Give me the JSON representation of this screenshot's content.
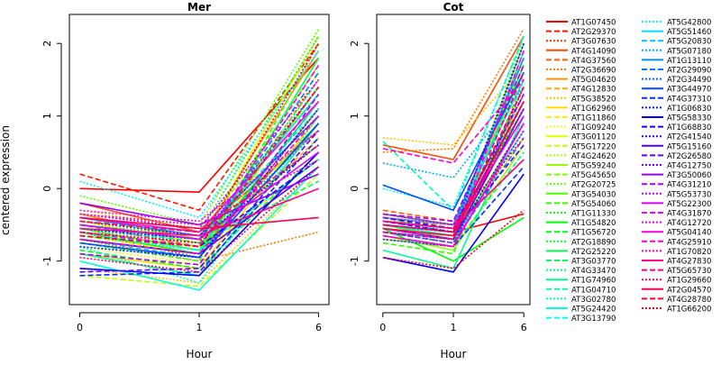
{
  "chart_data": {
    "type": "line",
    "ylabel": "centered expression",
    "x": [
      0,
      1,
      6
    ],
    "x_tick_labels": [
      "0",
      "1",
      "6"
    ],
    "xlabel": "Hour",
    "y_ticks": [
      -1,
      0,
      1,
      2
    ],
    "y_tick_labels": [
      "-1",
      "0",
      "1",
      "2"
    ],
    "legend": {
      "placement": "right",
      "columns": 2
    },
    "palette_note": "rainbow",
    "genes": [
      "AT1G07450",
      "AT2G29370",
      "AT3G07630",
      "AT4G14090",
      "AT4G37560",
      "AT2G36690",
      "AT5G04620",
      "AT4G12830",
      "AT5G38520",
      "AT1G62960",
      "AT1G11860",
      "AT1G09240",
      "AT3G01120",
      "AT5G17220",
      "AT4G24620",
      "AT5G59240",
      "AT5G45650",
      "AT2G20725",
      "AT3G54030",
      "AT5G54060",
      "AT1G11330",
      "AT1G54820",
      "AT1G56720",
      "AT2G18890",
      "AT2G25220",
      "AT3G03770",
      "AT4G33470",
      "AT1G74960",
      "AT1G04710",
      "AT3G02780",
      "AT5G24420",
      "AT3G13790",
      "AT5G42800",
      "AT5G51460",
      "AT5G20830",
      "AT5G07180",
      "AT1G13110",
      "AT2G29090",
      "AT2G34490",
      "AT3G44970",
      "AT4G37310",
      "AT1G06830",
      "AT5G58330",
      "AT1G68830",
      "AT2G41540",
      "AT5G15160",
      "AT2G26580",
      "AT4G12750",
      "AT3G50060",
      "AT4G31210",
      "AT5G53730",
      "AT5G22300",
      "AT4G31870",
      "AT4G12720",
      "AT5G04140",
      "AT4G25910",
      "AT1G70820",
      "AT4G27830",
      "AT5G65730",
      "AT1G29660",
      "AT2G04570",
      "AT4G28780",
      "AT1G66200"
    ],
    "line_styles": [
      "solid",
      "dashed",
      "dotted"
    ],
    "panels": [
      {
        "title": "Mer",
        "ylim": [
          -1.6,
          2.4
        ],
        "series": [
          [
            0.0,
            -0.05,
            1.8
          ],
          [
            0.2,
            -0.3,
            2.0
          ],
          [
            -0.6,
            -0.95,
            1.1
          ],
          [
            -0.2,
            -0.6,
            0.8
          ],
          [
            -0.5,
            -0.8,
            1.5
          ],
          [
            -0.7,
            -1.0,
            -0.6
          ],
          [
            -0.35,
            -0.7,
            1.9
          ],
          [
            -0.55,
            -0.85,
            0.7
          ],
          [
            -1.1,
            -1.3,
            0.3
          ],
          [
            -0.9,
            -1.1,
            1.0
          ],
          [
            -0.65,
            -0.9,
            0.4
          ],
          [
            -0.8,
            -1.05,
            1.6
          ],
          [
            -0.45,
            -0.75,
            2.1
          ],
          [
            -1.2,
            -1.35,
            0.2
          ],
          [
            -0.3,
            -0.55,
            1.3
          ],
          [
            -0.6,
            -0.8,
            0.9
          ],
          [
            -0.4,
            -0.7,
            1.7
          ],
          [
            -0.1,
            -0.5,
            2.2
          ],
          [
            -0.55,
            -0.85,
            1.4
          ],
          [
            -0.75,
            -1.0,
            2.0
          ],
          [
            -0.5,
            -0.65,
            0.6
          ],
          [
            -0.6,
            -0.9,
            1.2
          ],
          [
            -0.85,
            -1.1,
            0.5
          ],
          [
            -0.45,
            -0.6,
            2.1
          ],
          [
            -0.7,
            -0.9,
            1.8
          ],
          [
            -0.5,
            -0.75,
            0.1
          ],
          [
            -0.65,
            -0.85,
            1.5
          ],
          [
            -0.9,
            -1.2,
            0.9
          ],
          [
            -0.55,
            -0.7,
            1.1
          ],
          [
            -0.8,
            -1.3,
            1.0
          ],
          [
            -1.0,
            -1.4,
            0.3
          ],
          [
            -0.6,
            -0.85,
            0.4
          ],
          [
            0.1,
            -0.4,
            1.9
          ],
          [
            -0.5,
            -0.7,
            1.3
          ],
          [
            -0.7,
            -0.95,
            1.2
          ],
          [
            -0.55,
            -0.75,
            0.8
          ],
          [
            -0.4,
            -0.65,
            1.0
          ],
          [
            -0.65,
            -0.8,
            1.6
          ],
          [
            -0.5,
            -0.7,
            1.4
          ],
          [
            -0.75,
            -0.95,
            0.9
          ],
          [
            -1.2,
            -1.15,
            0.7
          ],
          [
            -0.8,
            -0.95,
            1.1
          ],
          [
            -1.1,
            -1.2,
            0.5
          ],
          [
            -0.6,
            -0.8,
            0.4
          ],
          [
            -0.55,
            -0.7,
            0.6
          ],
          [
            -0.7,
            -0.9,
            0.3
          ],
          [
            -1.15,
            -1.1,
            0.8
          ],
          [
            -0.45,
            -0.65,
            1.0
          ],
          [
            -0.2,
            -0.5,
            0.2
          ],
          [
            -0.9,
            -1.05,
            1.3
          ],
          [
            -0.35,
            -0.55,
            1.5
          ],
          [
            -0.5,
            -0.7,
            0.5
          ],
          [
            -0.6,
            -0.8,
            1.7
          ],
          [
            -0.3,
            -0.45,
            0.8
          ],
          [
            -0.4,
            -0.6,
            1.2
          ],
          [
            -0.7,
            -0.9,
            1.0
          ],
          [
            -0.35,
            -0.5,
            0.4
          ],
          [
            -0.55,
            -0.65,
            0.0
          ],
          [
            -0.45,
            -0.6,
            0.6
          ],
          [
            -0.95,
            -1.15,
            0.3
          ],
          [
            -0.4,
            -0.55,
            -0.4
          ],
          [
            -0.65,
            -0.8,
            1.4
          ],
          [
            -0.6,
            -0.75,
            2.0
          ]
        ]
      },
      {
        "title": "Cot",
        "ylim": [
          -1.6,
          2.4
        ],
        "series": [
          [
            -0.5,
            -0.6,
            -0.35
          ],
          [
            -0.4,
            -0.5,
            1.2
          ],
          [
            -0.6,
            -0.7,
            2.0
          ],
          [
            0.6,
            0.4,
            2.1
          ],
          [
            -0.3,
            -0.45,
            1.5
          ],
          [
            0.5,
            0.55,
            2.2
          ],
          [
            -0.55,
            -0.65,
            1.8
          ],
          [
            -0.45,
            -0.5,
            1.0
          ],
          [
            0.7,
            0.6,
            1.7
          ],
          [
            -0.6,
            -0.7,
            1.3
          ],
          [
            -0.5,
            -0.65,
            0.7
          ],
          [
            -0.4,
            -0.55,
            2.0
          ],
          [
            -0.7,
            -0.8,
            1.9
          ],
          [
            -0.35,
            -0.5,
            1.6
          ],
          [
            -0.55,
            -0.7,
            1.4
          ],
          [
            -0.65,
            -0.85,
            0.6
          ],
          [
            -0.45,
            -0.6,
            1.1
          ],
          [
            -0.6,
            -0.75,
            2.1
          ],
          [
            -0.5,
            -0.7,
            0.9
          ],
          [
            -0.75,
            -0.9,
            1.5
          ],
          [
            -0.45,
            -0.55,
            1.8
          ],
          [
            -0.55,
            -1.0,
            -0.4
          ],
          [
            -0.6,
            -0.75,
            1.2
          ],
          [
            -0.4,
            -0.6,
            2.0
          ],
          [
            -0.5,
            -0.65,
            1.7
          ],
          [
            -0.7,
            -0.8,
            0.5
          ],
          [
            -0.55,
            -0.7,
            1.3
          ],
          [
            -0.85,
            -1.1,
            1.0
          ],
          [
            0.65,
            -0.3,
            2.1
          ],
          [
            -0.45,
            -0.55,
            1.6
          ],
          [
            -0.6,
            -0.7,
            0.8
          ],
          [
            -0.5,
            -0.65,
            1.9
          ],
          [
            0.0,
            -0.25,
            2.1
          ],
          [
            -0.4,
            -0.5,
            1.5
          ],
          [
            -0.55,
            -0.7,
            1.1
          ],
          [
            0.35,
            0.15,
            1.4
          ],
          [
            -0.35,
            -0.5,
            1.8
          ],
          [
            -0.6,
            -0.75,
            0.7
          ],
          [
            -0.45,
            -0.6,
            1.2
          ],
          [
            0.05,
            -0.3,
            1.6
          ],
          [
            -0.65,
            -0.8,
            0.3
          ],
          [
            -0.5,
            -0.6,
            2.0
          ],
          [
            -0.95,
            -1.15,
            0.2
          ],
          [
            -0.4,
            -0.55,
            1.3
          ],
          [
            -0.6,
            -0.7,
            0.9
          ],
          [
            -0.55,
            -0.7,
            1.1
          ],
          [
            -0.45,
            -0.6,
            0.6
          ],
          [
            -0.7,
            -0.8,
            1.4
          ],
          [
            -0.5,
            -0.6,
            1.2
          ],
          [
            -0.35,
            -0.45,
            1.7
          ],
          [
            -0.6,
            -0.75,
            0.8
          ],
          [
            -0.45,
            -0.55,
            1.0
          ],
          [
            -0.55,
            -0.7,
            1.9
          ],
          [
            -0.4,
            -0.5,
            1.3
          ],
          [
            -0.65,
            -0.8,
            0.9
          ],
          [
            0.55,
            0.35,
            1.5
          ],
          [
            -0.5,
            -0.6,
            1.1
          ],
          [
            -0.45,
            -0.55,
            0.4
          ],
          [
            -0.6,
            -0.7,
            1.6
          ],
          [
            -0.35,
            -0.5,
            0.7
          ],
          [
            -0.55,
            -0.65,
            1.2
          ],
          [
            -0.5,
            -0.6,
            1.4
          ],
          [
            -0.95,
            -1.1,
            -0.3
          ]
        ]
      }
    ]
  }
}
